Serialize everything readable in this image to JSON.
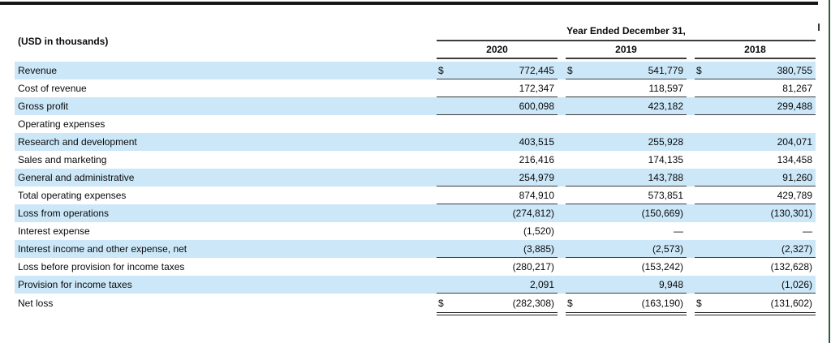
{
  "meta": {
    "units_label": "(USD in thousands)",
    "table_title": "Year Ended December 31,"
  },
  "columns": [
    "2020",
    "2019",
    "2018"
  ],
  "colors": {
    "stripe": "#cbe7f8",
    "rule": "#3c3c3c",
    "right_edge": "#2e5c44",
    "top_bar": "#161616"
  },
  "rows": [
    {
      "label": "Revenue",
      "dollar": true,
      "shade": true,
      "rule": "single",
      "values": [
        "772,445",
        "541,779",
        "380,755"
      ]
    },
    {
      "label": "Cost of revenue",
      "dollar": false,
      "shade": false,
      "rule": "single",
      "values": [
        "172,347",
        "118,597",
        "81,267"
      ]
    },
    {
      "label": "Gross profit",
      "dollar": false,
      "shade": true,
      "rule": "single",
      "values": [
        "600,098",
        "423,182",
        "299,488"
      ]
    },
    {
      "label": "Operating expenses",
      "dollar": false,
      "shade": false,
      "rule": "none",
      "values": [
        "",
        "",
        ""
      ]
    },
    {
      "label": "Research and development",
      "dollar": false,
      "shade": true,
      "rule": "none",
      "values": [
        "403,515",
        "255,928",
        "204,071"
      ]
    },
    {
      "label": "Sales and marketing",
      "dollar": false,
      "shade": false,
      "rule": "none",
      "values": [
        "216,416",
        "174,135",
        "134,458"
      ]
    },
    {
      "label": "General and administrative",
      "dollar": false,
      "shade": true,
      "rule": "single",
      "values": [
        "254,979",
        "143,788",
        "91,260"
      ]
    },
    {
      "label": "Total operating expenses",
      "dollar": false,
      "shade": false,
      "rule": "single",
      "values": [
        "874,910",
        "573,851",
        "429,789"
      ]
    },
    {
      "label": "Loss from operations",
      "dollar": false,
      "shade": true,
      "rule": "none",
      "values": [
        "(274,812)",
        "(150,669)",
        "(130,301)"
      ]
    },
    {
      "label": "Interest expense",
      "dollar": false,
      "shade": false,
      "rule": "none",
      "values": [
        "(1,520)",
        "—",
        "—"
      ]
    },
    {
      "label": "Interest income and other expense, net",
      "dollar": false,
      "shade": true,
      "rule": "single",
      "values": [
        "(3,885)",
        "(2,573)",
        "(2,327)"
      ]
    },
    {
      "label": "Loss before provision for income taxes",
      "dollar": false,
      "shade": false,
      "rule": "none",
      "values": [
        "(280,217)",
        "(153,242)",
        "(132,628)"
      ]
    },
    {
      "label": "Provision for income taxes",
      "dollar": false,
      "shade": true,
      "rule": "single",
      "values": [
        "2,091",
        "9,948",
        "(1,026)"
      ]
    },
    {
      "label": "Net loss",
      "dollar": true,
      "shade": false,
      "rule": "double",
      "values": [
        "(282,308)",
        "(163,190)",
        "(131,602)"
      ]
    }
  ]
}
